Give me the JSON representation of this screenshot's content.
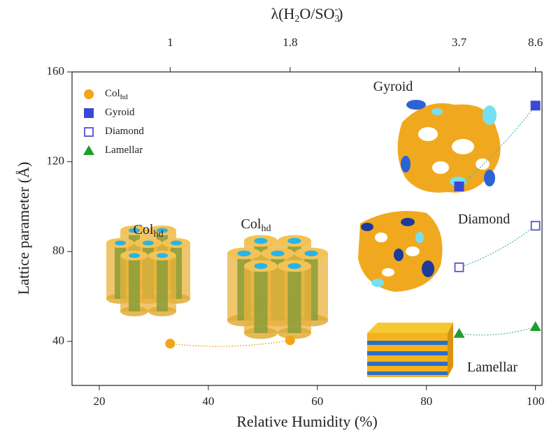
{
  "chart_data": {
    "type": "scatter",
    "xlabel": "Relative Humidity (%)",
    "ylabel": "Lattice parameter (Å)",
    "x2label_parts": [
      "λ(H",
      "2",
      "O/SO",
      "3",
      "-",
      ")"
    ],
    "xlim": [
      15,
      101.2
    ],
    "ylim": [
      20.4,
      160
    ],
    "xticks": [
      20,
      40,
      60,
      80,
      100
    ],
    "yticks": [
      40,
      80,
      120,
      160
    ],
    "x2ticks": [
      {
        "value": 33,
        "label": "1"
      },
      {
        "value": 55,
        "label": "1.8"
      },
      {
        "value": 86,
        "label": "3.7"
      },
      {
        "value": 100,
        "label": "8.6"
      }
    ],
    "series": [
      {
        "name": "Col",
        "name_sub": "hd",
        "marker": "circle",
        "color": "#f2a516",
        "x": [
          33,
          55
        ],
        "values": [
          39,
          40.5
        ]
      },
      {
        "name": "Gyroid",
        "marker": "square",
        "color": "#3b48d6",
        "x": [
          86,
          100
        ],
        "values": [
          109,
          145
        ]
      },
      {
        "name": "Diamond",
        "marker": "open-square",
        "color": "#5b4fcf",
        "x": [
          86,
          100
        ],
        "values": [
          73,
          91.5
        ]
      },
      {
        "name": "Lamellar",
        "marker": "triangle",
        "color": "#1e9e2a",
        "x": [
          86,
          100
        ],
        "values": [
          43.5,
          46.5
        ]
      }
    ],
    "annotations": [
      {
        "text": "Col",
        "sub": "hd"
      },
      {
        "text": "Col",
        "sub": "hd"
      },
      {
        "text": "Gyroid"
      },
      {
        "text": "Diamond"
      },
      {
        "text": "Lamellar"
      }
    ]
  }
}
